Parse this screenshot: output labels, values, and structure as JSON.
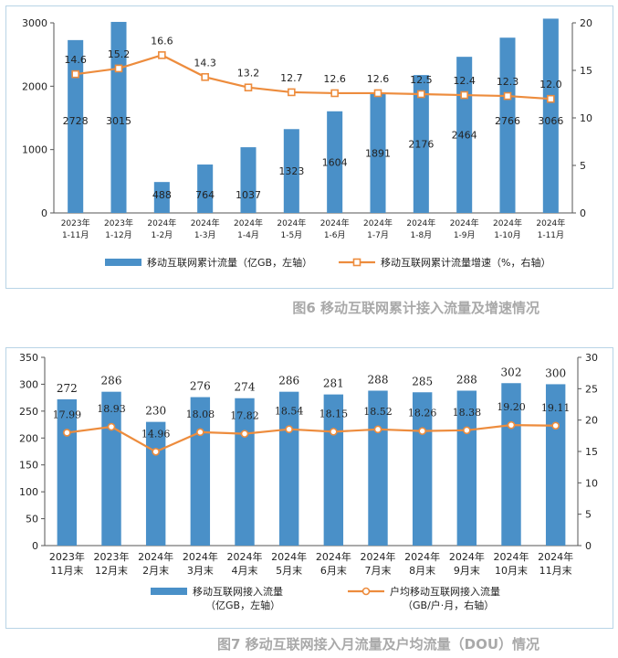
{
  "chart_data": [
    {
      "type": "bar+line",
      "title": "图6 移动互联网累计接入流量及增速情况",
      "categories": [
        "2023年\n1-11月",
        "2023年\n1-12月",
        "2024年\n1-2月",
        "2024年\n1-3月",
        "2024年\n1-4月",
        "2024年\n1-5月",
        "2024年\n1-6月",
        "2024年\n1-7月",
        "2024年\n1-8月",
        "2024年\n1-9月",
        "2024年\n1-10月",
        "2024年\n1-11月"
      ],
      "bar_labels": [
        "2728",
        "3015",
        "488",
        "764",
        "1037",
        "1323",
        "1604",
        "1891",
        "2176",
        "2464",
        "2766",
        "3066"
      ],
      "line_labels": [
        "14.6",
        "15.2",
        "16.6",
        "14.3",
        "13.2",
        "12.7",
        "12.6",
        "12.6",
        "12.5",
        "12.4",
        "12.3",
        "12.0"
      ],
      "series": [
        {
          "name": "移动互联网累计流量（亿GB，左轴）",
          "values": [
            2728,
            3015,
            488,
            764,
            1037,
            1323,
            1604,
            1891,
            2176,
            2464,
            2766,
            3066
          ],
          "axis": "left",
          "kind": "bar"
        },
        {
          "name": "移动互联网累计流量增速（%，右轴）",
          "values": [
            14.6,
            15.2,
            16.6,
            14.3,
            13.2,
            12.7,
            12.6,
            12.6,
            12.5,
            12.4,
            12.3,
            12.0
          ],
          "axis": "right",
          "kind": "line"
        }
      ],
      "ylim_left": [
        0,
        3000
      ],
      "yticks_left": [
        "0",
        "1000",
        "2000",
        "3000"
      ],
      "ylim_right": [
        0,
        20
      ],
      "yticks_right": [
        "0",
        "5",
        "10",
        "15",
        "20"
      ],
      "legend": [
        "移动互联网累计流量（亿GB，左轴）",
        "移动互联网累计流量增速（%，右轴）"
      ],
      "colors": {
        "bar": "#4a90c8",
        "line": "#ed8c3d"
      }
    },
    {
      "type": "bar+line",
      "title": "图7 移动互联网接入月流量及户均流量（DOU）情况",
      "categories": [
        "2023年\n11月末",
        "2023年\n12月末",
        "2024年\n2月末",
        "2024年\n3月末",
        "2024年\n4月末",
        "2024年\n5月末",
        "2024年\n6月末",
        "2024年\n7月末",
        "2024年\n8月末",
        "2024年\n9月末",
        "2024年\n10月末",
        "2024年\n11月末"
      ],
      "bar_labels": [
        "272",
        "286",
        "230",
        "276",
        "274",
        "286",
        "281",
        "288",
        "285",
        "288",
        "302",
        "300"
      ],
      "line_labels": [
        "17.99",
        "18.93",
        "14.96",
        "18.08",
        "17.82",
        "18.54",
        "18.15",
        "18.52",
        "18.26",
        "18.38",
        "19.20",
        "19.11"
      ],
      "series": [
        {
          "name": "移动互联网接入流量\n（亿GB，左轴）",
          "values": [
            272,
            286,
            230,
            276,
            274,
            286,
            281,
            288,
            285,
            288,
            302,
            300
          ],
          "axis": "left",
          "kind": "bar"
        },
        {
          "name": "户均移动互联网接入流量\n（GB/户·月，右轴）",
          "values": [
            17.99,
            18.93,
            14.96,
            18.08,
            17.82,
            18.54,
            18.15,
            18.52,
            18.26,
            18.38,
            19.2,
            19.11
          ],
          "axis": "right",
          "kind": "line"
        }
      ],
      "ylim_left": [
        0,
        350
      ],
      "yticks_left": [
        "0",
        "50",
        "100",
        "150",
        "200",
        "250",
        "300",
        "350"
      ],
      "ylim_right": [
        0,
        30
      ],
      "yticks_right": [
        "0",
        "5",
        "10",
        "15",
        "20",
        "25",
        "30"
      ],
      "legend": [
        "移动互联网接入流量\n（亿GB，左轴）",
        "户均移动互联网接入流量\n（GB/户·月，右轴）"
      ],
      "colors": {
        "bar": "#4a90c8",
        "line": "#ed8c3d"
      }
    }
  ]
}
